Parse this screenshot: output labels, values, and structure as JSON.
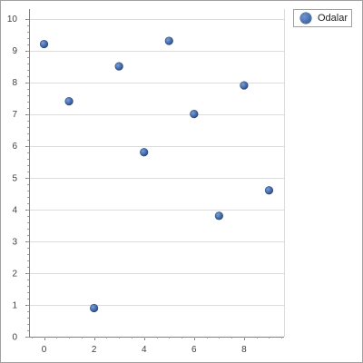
{
  "chart_data": {
    "type": "scatter",
    "title": "",
    "xlabel": "",
    "ylabel": "",
    "xlim": [
      -0.6,
      9.6
    ],
    "ylim": [
      0,
      10.3
    ],
    "x_ticks": [
      0,
      2,
      4,
      6,
      8
    ],
    "y_ticks": [
      0,
      1,
      2,
      3,
      4,
      5,
      6,
      7,
      8,
      9,
      10
    ],
    "grid": "horizontal",
    "legend_position": "top-right",
    "series": [
      {
        "name": "Odalar",
        "color": "#4a72b2",
        "points": [
          {
            "x": 0,
            "y": 9.2
          },
          {
            "x": 1,
            "y": 7.4
          },
          {
            "x": 2,
            "y": 0.9
          },
          {
            "x": 3,
            "y": 8.5
          },
          {
            "x": 4,
            "y": 5.8
          },
          {
            "x": 5,
            "y": 9.3
          },
          {
            "x": 6,
            "y": 7.0
          },
          {
            "x": 7,
            "y": 3.8
          },
          {
            "x": 8,
            "y": 7.9
          },
          {
            "x": 9,
            "y": 4.6
          }
        ]
      }
    ]
  }
}
